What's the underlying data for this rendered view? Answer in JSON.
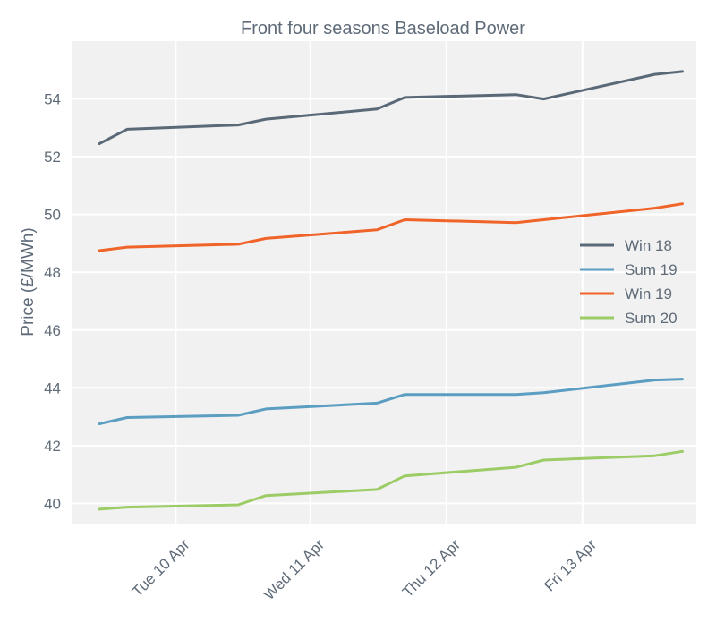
{
  "chart_data": {
    "type": "line",
    "title": "Front four seasons Baseload Power",
    "xlabel": "",
    "ylabel": "Price (£/MWh)",
    "ylim": [
      39.3,
      56.0
    ],
    "xlim": [
      -1.0,
      21.5
    ],
    "yticks": [
      40,
      42,
      44,
      46,
      48,
      50,
      52,
      54
    ],
    "xticks": [
      {
        "pos": 2.75,
        "label": "Tue 10 Apr"
      },
      {
        "pos": 7.6,
        "label": "Wed 11 Apr"
      },
      {
        "pos": 12.5,
        "label": "Thu 12 Apr"
      },
      {
        "pos": 17.4,
        "label": "Fri 13 Apr"
      }
    ],
    "x": [
      0,
      1,
      5,
      6,
      10,
      11,
      15,
      16,
      20,
      21
    ],
    "grid": true,
    "legend_position": "center-right",
    "series": [
      {
        "name": "Win 18",
        "color": "#5a6978",
        "values": [
          52.45,
          52.95,
          53.1,
          53.3,
          53.65,
          54.05,
          54.15,
          54.0,
          54.85,
          54.95
        ]
      },
      {
        "name": "Sum 19",
        "color": "#5b9ec2",
        "values": [
          42.75,
          42.97,
          43.05,
          43.27,
          43.47,
          43.77,
          43.77,
          43.83,
          44.27,
          44.3
        ]
      },
      {
        "name": "Win 19",
        "color": "#f0642a",
        "values": [
          48.75,
          48.87,
          48.97,
          49.17,
          49.47,
          49.82,
          49.72,
          49.82,
          50.22,
          50.37
        ]
      },
      {
        "name": "Sum 20",
        "color": "#9ccc65",
        "values": [
          39.8,
          39.87,
          39.95,
          40.27,
          40.48,
          40.95,
          41.25,
          41.5,
          41.65,
          41.8
        ]
      }
    ]
  }
}
